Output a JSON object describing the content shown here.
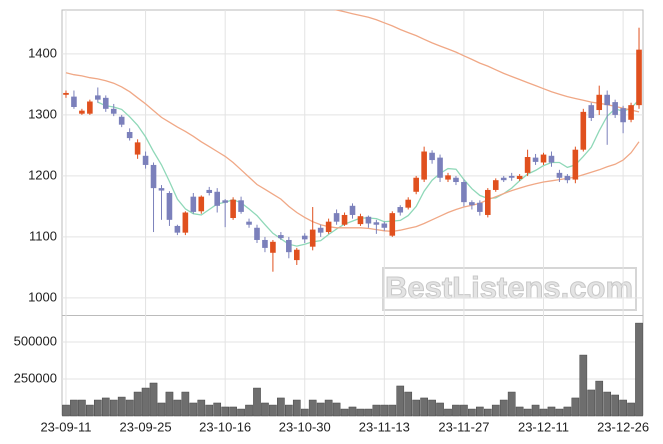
{
  "chart_data": [
    {
      "type": "candlestick",
      "up_color": "#e0501e",
      "down_color": "#7b80bb",
      "ylim": [
        972,
        1472
      ],
      "yticks": [
        1000,
        1100,
        1200,
        1300,
        1400
      ],
      "grid": true,
      "watermark": "BestListens.com",
      "open": [
        1333,
        1330,
        1302,
        1302,
        1332,
        1328,
        1310,
        1297,
        1272,
        1235,
        1233,
        1218,
        1180,
        1172,
        1118,
        1107,
        1166,
        1142,
        1177,
        1174,
        1160,
        1131,
        1160,
        1125,
        1115,
        1095,
        1074,
        1103,
        1095,
        1062,
        1102,
        1084,
        1115,
        1108,
        1139,
        1120,
        1151,
        1121,
        1133,
        1124,
        1122,
        1102,
        1149,
        1148,
        1174,
        1194,
        1238,
        1230,
        1194,
        1197,
        1190,
        1157,
        1156,
        1136,
        1177,
        1197,
        1200,
        1195,
        1205,
        1230,
        1222,
        1233,
        1205,
        1200,
        1194,
        1243,
        1316,
        1308,
        1333,
        1321,
        1311,
        1292,
        1316
      ],
      "high": [
        1340,
        1340,
        1310,
        1325,
        1345,
        1332,
        1318,
        1300,
        1278,
        1260,
        1240,
        1222,
        1185,
        1175,
        1120,
        1142,
        1172,
        1168,
        1182,
        1180,
        1162,
        1165,
        1166,
        1130,
        1120,
        1100,
        1095,
        1108,
        1100,
        1082,
        1106,
        1149,
        1120,
        1130,
        1145,
        1140,
        1155,
        1138,
        1135,
        1128,
        1125,
        1142,
        1152,
        1165,
        1200,
        1248,
        1242,
        1235,
        1205,
        1200,
        1194,
        1160,
        1160,
        1180,
        1196,
        1200,
        1205,
        1203,
        1243,
        1236,
        1238,
        1240,
        1210,
        1203,
        1248,
        1310,
        1320,
        1348,
        1340,
        1325,
        1315,
        1320,
        1443
      ],
      "low": [
        1328,
        1310,
        1300,
        1300,
        1320,
        1305,
        1298,
        1280,
        1258,
        1228,
        1212,
        1108,
        1128,
        1118,
        1103,
        1103,
        1138,
        1138,
        1168,
        1140,
        1116,
        1128,
        1138,
        1115,
        1090,
        1075,
        1043,
        1095,
        1065,
        1054,
        1090,
        1078,
        1100,
        1105,
        1120,
        1118,
        1130,
        1118,
        1115,
        1105,
        1110,
        1100,
        1135,
        1145,
        1170,
        1190,
        1220,
        1190,
        1190,
        1185,
        1150,
        1145,
        1135,
        1132,
        1174,
        1190,
        1192,
        1192,
        1200,
        1218,
        1218,
        1215,
        1190,
        1188,
        1188,
        1240,
        1290,
        1300,
        1251,
        1295,
        1270,
        1288,
        1310
      ],
      "close": [
        1336,
        1313,
        1307,
        1322,
        1325,
        1310,
        1302,
        1284,
        1262,
        1255,
        1218,
        1180,
        1176,
        1128,
        1107,
        1140,
        1141,
        1166,
        1172,
        1151,
        1156,
        1161,
        1141,
        1120,
        1095,
        1082,
        1092,
        1098,
        1075,
        1079,
        1096,
        1112,
        1107,
        1125,
        1125,
        1136,
        1136,
        1134,
        1122,
        1120,
        1115,
        1139,
        1140,
        1161,
        1197,
        1240,
        1226,
        1197,
        1201,
        1190,
        1157,
        1152,
        1141,
        1177,
        1193,
        1193,
        1197,
        1200,
        1231,
        1223,
        1235,
        1222,
        1197,
        1193,
        1243,
        1305,
        1295,
        1333,
        1316,
        1300,
        1288,
        1316,
        1407
      ],
      "lines": [
        {
          "color": "#8fd8b8",
          "values": [
            null,
            null,
            null,
            null,
            1321,
            1315,
            1313,
            1309,
            1297,
            1283,
            1264,
            1240,
            1218,
            1191,
            1162,
            1146,
            1138,
            1136,
            1145,
            1154,
            1157,
            1161,
            1156,
            1146,
            1135,
            1120,
            1106,
            1097,
            1088,
            1085,
            1088,
            1092,
            1094,
            1104,
            1113,
            1121,
            1126,
            1131,
            1131,
            1130,
            1125,
            1126,
            1127,
            1135,
            1150,
            1175,
            1193,
            1204,
            1212,
            1211,
            1194,
            1179,
            1168,
            1163,
            1164,
            1171,
            1180,
            1192,
            1203,
            1209,
            1217,
            1222,
            1222,
            1214,
            1218,
            1232,
            1247,
            1274,
            1298,
            1310,
            1306,
            1311,
            1325
          ]
        },
        {
          "color": "#f0a886",
          "values": [
            1369,
            1366,
            1364,
            1361,
            1359,
            1356,
            1352,
            1346,
            1338,
            1328,
            1318,
            1307,
            1296,
            1288,
            1280,
            1273,
            1265,
            1256,
            1248,
            1240,
            1232,
            1222,
            1210,
            1198,
            1186,
            1178,
            1170,
            1162,
            1150,
            1140,
            1132,
            1125,
            1120,
            1117,
            1115,
            1115,
            1115,
            1115,
            1114,
            1112,
            1110,
            1109,
            1111,
            1114,
            1117,
            1122,
            1128,
            1134,
            1140,
            1145,
            1149,
            1152,
            1155,
            1161,
            1166,
            1171,
            1176,
            1180,
            1184,
            1187,
            1190,
            1192,
            1194,
            1196,
            1198,
            1202,
            1206,
            1210,
            1215,
            1219,
            1226,
            1238,
            1256
          ]
        },
        {
          "color": "#f0a886",
          "values": [
            null,
            null,
            null,
            null,
            null,
            null,
            null,
            null,
            null,
            null,
            null,
            null,
            null,
            null,
            null,
            null,
            null,
            null,
            null,
            null,
            null,
            null,
            null,
            null,
            null,
            null,
            null,
            null,
            null,
            null,
            null,
            null,
            null,
            1475,
            1472,
            1469,
            1466,
            1463,
            1460,
            1456,
            1451,
            1446,
            1440,
            1435,
            1430,
            1424,
            1418,
            1413,
            1408,
            1403,
            1397,
            1391,
            1385,
            1380,
            1374,
            1368,
            1363,
            1358,
            1353,
            1348,
            1343,
            1338,
            1334,
            1330,
            1327,
            1324,
            1321,
            1319,
            1317,
            1314,
            1311,
            1308,
            1305
          ]
        }
      ]
    },
    {
      "type": "bar",
      "color": "#6e6e6e",
      "ylim": [
        0,
        676000
      ],
      "yticks": [
        250000,
        500000
      ],
      "grid": true,
      "categories": [
        "23-09-11",
        null,
        null,
        null,
        null,
        null,
        null,
        null,
        null,
        null,
        "23-09-25",
        null,
        null,
        null,
        null,
        null,
        null,
        null,
        null,
        null,
        "23-10-16",
        null,
        null,
        null,
        null,
        null,
        null,
        null,
        null,
        null,
        "23-10-30",
        null,
        null,
        null,
        null,
        null,
        null,
        null,
        null,
        null,
        "23-11-13",
        null,
        null,
        null,
        null,
        null,
        null,
        null,
        null,
        null,
        "23-11-27",
        null,
        null,
        null,
        null,
        null,
        null,
        null,
        null,
        null,
        "23-12-11",
        null,
        null,
        null,
        null,
        null,
        null,
        null,
        null,
        null,
        "23-12-26",
        null,
        null
      ],
      "values": [
        74000,
        108000,
        108000,
        74000,
        108000,
        122000,
        108000,
        128000,
        108000,
        162000,
        189000,
        223000,
        88000,
        162000,
        108000,
        162000,
        88000,
        108000,
        74000,
        88000,
        61000,
        61000,
        47000,
        74000,
        189000,
        88000,
        74000,
        122000,
        74000,
        108000,
        47000,
        108000,
        88000,
        108000,
        88000,
        47000,
        61000,
        47000,
        47000,
        74000,
        74000,
        74000,
        203000,
        162000,
        108000,
        122000,
        108000,
        88000,
        47000,
        74000,
        74000,
        47000,
        61000,
        47000,
        74000,
        108000,
        162000,
        61000,
        47000,
        74000,
        47000,
        61000,
        47000,
        61000,
        122000,
        412000,
        176000,
        236000,
        162000,
        142000,
        108000,
        88000,
        628000
      ]
    }
  ]
}
